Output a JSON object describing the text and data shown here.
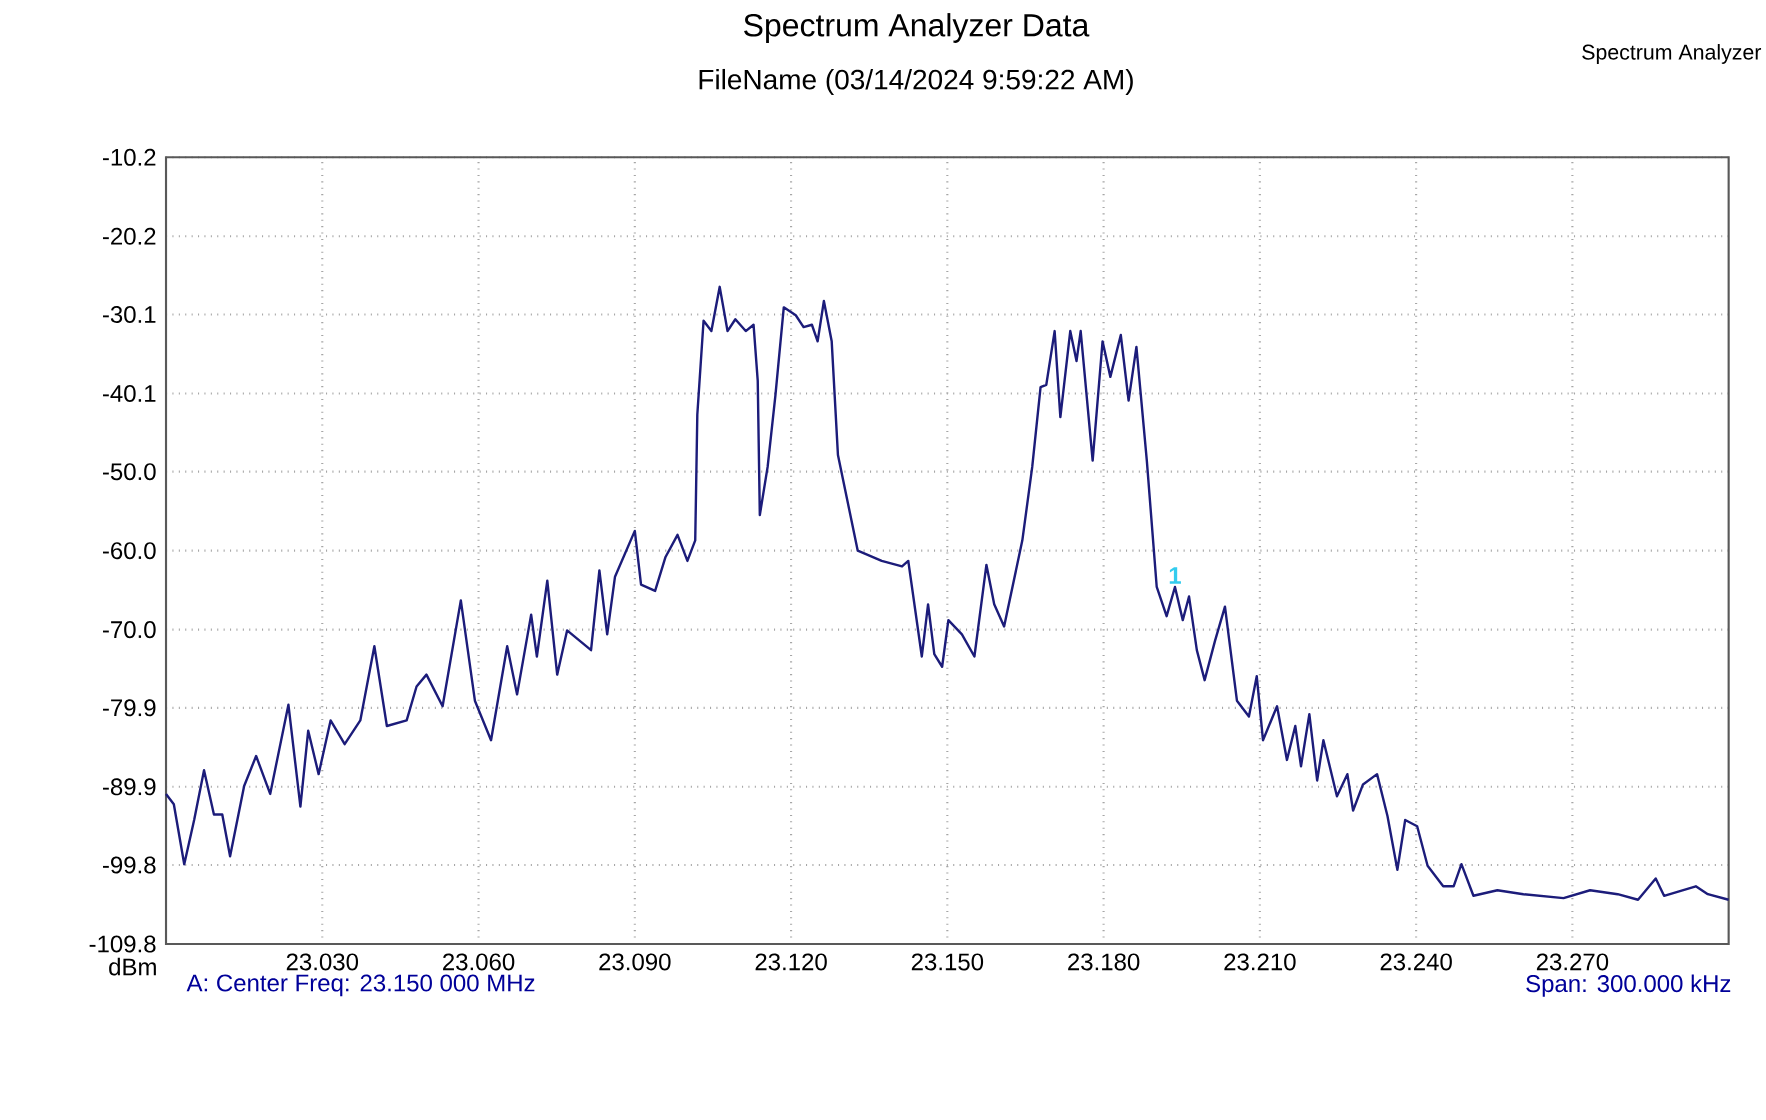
{
  "chart_data": {
    "type": "line",
    "title": "Spectrum Analyzer Data",
    "subtitle": "FileName (03/14/2024 9:59:22 AM)",
    "ylabel": "dBm",
    "annotations": [
      "Spectrum Analyzer",
      "A: Center Freq: 23.150 000 MHz",
      "Span: 300.000 kHz",
      {
        "text": "1",
        "x": 23.1937,
        "y": -64.6
      }
    ],
    "xlim": [
      23.0,
      23.3
    ],
    "ylim": [
      -109.8,
      -10.2
    ],
    "xticks": [
      {
        "value": 23.03,
        "label": "23.030"
      },
      {
        "value": 23.06,
        "label": "23.060"
      },
      {
        "value": 23.09,
        "label": "23.090"
      },
      {
        "value": 23.12,
        "label": "23.120"
      },
      {
        "value": 23.15,
        "label": "23.150"
      },
      {
        "value": 23.18,
        "label": "23.180"
      },
      {
        "value": 23.21,
        "label": "23.210"
      },
      {
        "value": 23.24,
        "label": "23.240"
      },
      {
        "value": 23.27,
        "label": "23.270"
      }
    ],
    "yticks": [
      {
        "value": -109.8,
        "label": "-109.8"
      },
      {
        "value": -99.8,
        "label": "-99.8"
      },
      {
        "value": -89.9,
        "label": "-89.9"
      },
      {
        "value": -79.9,
        "label": "-79.9"
      },
      {
        "value": -70.0,
        "label": "-70.0"
      },
      {
        "value": -60.0,
        "label": "-60.0"
      },
      {
        "value": -50.0,
        "label": "-50.0"
      },
      {
        "value": -40.1,
        "label": "-40.1"
      },
      {
        "value": -30.1,
        "label": "-30.1"
      },
      {
        "value": -20.2,
        "label": "-20.2"
      },
      {
        "value": -10.2,
        "label": "-10.2"
      }
    ],
    "grid": true,
    "line_style": "solid",
    "series": [
      {
        "color": "#1c1c7a",
        "x": [
          23.0,
          23.0015,
          23.0035,
          23.0054,
          23.0073,
          23.0092,
          23.0108,
          23.0123,
          23.015,
          23.0173,
          23.02,
          23.0235,
          23.0258,
          23.0273,
          23.0293,
          23.0316,
          23.0343,
          23.0373,
          23.04,
          23.0424,
          23.0462,
          23.0481,
          23.05,
          23.0531,
          23.0566,
          23.0593,
          23.0624,
          23.0655,
          23.0674,
          23.0701,
          23.0712,
          23.0732,
          23.0751,
          23.077,
          23.0816,
          23.0832,
          23.0847,
          23.0862,
          23.09,
          23.0912,
          23.0939,
          23.0959,
          23.0982,
          23.1001,
          23.1016,
          23.102,
          23.1032,
          23.1047,
          23.1063,
          23.1078,
          23.1093,
          23.1113,
          23.1128,
          23.1136,
          23.114,
          23.1155,
          23.117,
          23.1186,
          23.1209,
          23.1224,
          23.124,
          23.1251,
          23.1263,
          23.1278,
          23.129,
          23.1328,
          23.1374,
          23.1413,
          23.1425,
          23.1451,
          23.1463,
          23.1475,
          23.149,
          23.1502,
          23.1528,
          23.1552,
          23.1575,
          23.159,
          23.1609,
          23.1644,
          23.1663,
          23.1679,
          23.169,
          23.1706,
          23.1717,
          23.1736,
          23.1748,
          23.1756,
          23.1779,
          23.1798,
          23.1813,
          23.1833,
          23.1848,
          23.1863,
          23.1883,
          23.1902,
          23.1921,
          23.1937,
          23.1952,
          23.1964,
          23.1979,
          23.1994,
          23.2014,
          23.2033,
          23.2056,
          23.2079,
          23.2094,
          23.2106,
          23.2133,
          23.2152,
          23.2168,
          23.2179,
          23.2195,
          23.221,
          23.2222,
          23.2248,
          23.2268,
          23.2279,
          23.2298,
          23.2325,
          23.2345,
          23.2364,
          23.2379,
          23.2402,
          23.2422,
          23.2452,
          23.2472,
          23.2487,
          23.251,
          23.2556,
          23.2606,
          23.2683,
          23.2734,
          23.2787,
          23.2826,
          23.286,
          23.2876,
          23.2937,
          23.296,
          23.3
        ],
        "values": [
          -90.8,
          -92.1,
          -99.7,
          -94.1,
          -87.8,
          -93.4,
          -93.4,
          -98.7,
          -89.8,
          -86.0,
          -90.8,
          -79.5,
          -92.4,
          -82.8,
          -88.3,
          -81.5,
          -84.5,
          -81.5,
          -72.1,
          -82.2,
          -81.5,
          -77.2,
          -75.7,
          -79.7,
          -66.3,
          -79.0,
          -84.0,
          -72.1,
          -78.2,
          -68.1,
          -73.4,
          -63.8,
          -75.7,
          -70.1,
          -72.6,
          -62.5,
          -70.6,
          -63.3,
          -57.5,
          -64.3,
          -65.1,
          -60.8,
          -58.0,
          -61.3,
          -58.7,
          -42.8,
          -30.9,
          -32.2,
          -26.6,
          -32.2,
          -30.7,
          -32.2,
          -31.4,
          -38.5,
          -55.5,
          -49.4,
          -40.3,
          -29.2,
          -30.2,
          -31.7,
          -31.4,
          -33.5,
          -28.4,
          -33.5,
          -47.9,
          -60.0,
          -61.3,
          -62.0,
          -61.3,
          -73.4,
          -66.8,
          -73.1,
          -74.7,
          -68.8,
          -70.6,
          -73.4,
          -61.8,
          -66.8,
          -69.6,
          -58.7,
          -49.4,
          -39.3,
          -39.0,
          -32.2,
          -43.1,
          -32.2,
          -36.0,
          -32.2,
          -48.6,
          -33.5,
          -38.0,
          -32.7,
          -41.0,
          -34.2,
          -48.6,
          -64.6,
          -68.3,
          -64.6,
          -68.8,
          -65.8,
          -72.6,
          -76.4,
          -71.4,
          -67.1,
          -79.0,
          -81.0,
          -75.9,
          -84.0,
          -79.7,
          -86.5,
          -82.2,
          -87.3,
          -80.7,
          -89.1,
          -84.0,
          -91.1,
          -88.3,
          -92.9,
          -89.6,
          -88.3,
          -93.6,
          -100.4,
          -94.1,
          -94.9,
          -99.9,
          -102.5,
          -102.5,
          -99.7,
          -103.7,
          -103.0,
          -103.5,
          -104.0,
          -103.0,
          -103.5,
          -104.2,
          -101.5,
          -103.7,
          -102.5,
          -103.5,
          -104.2
        ]
      }
    ]
  }
}
